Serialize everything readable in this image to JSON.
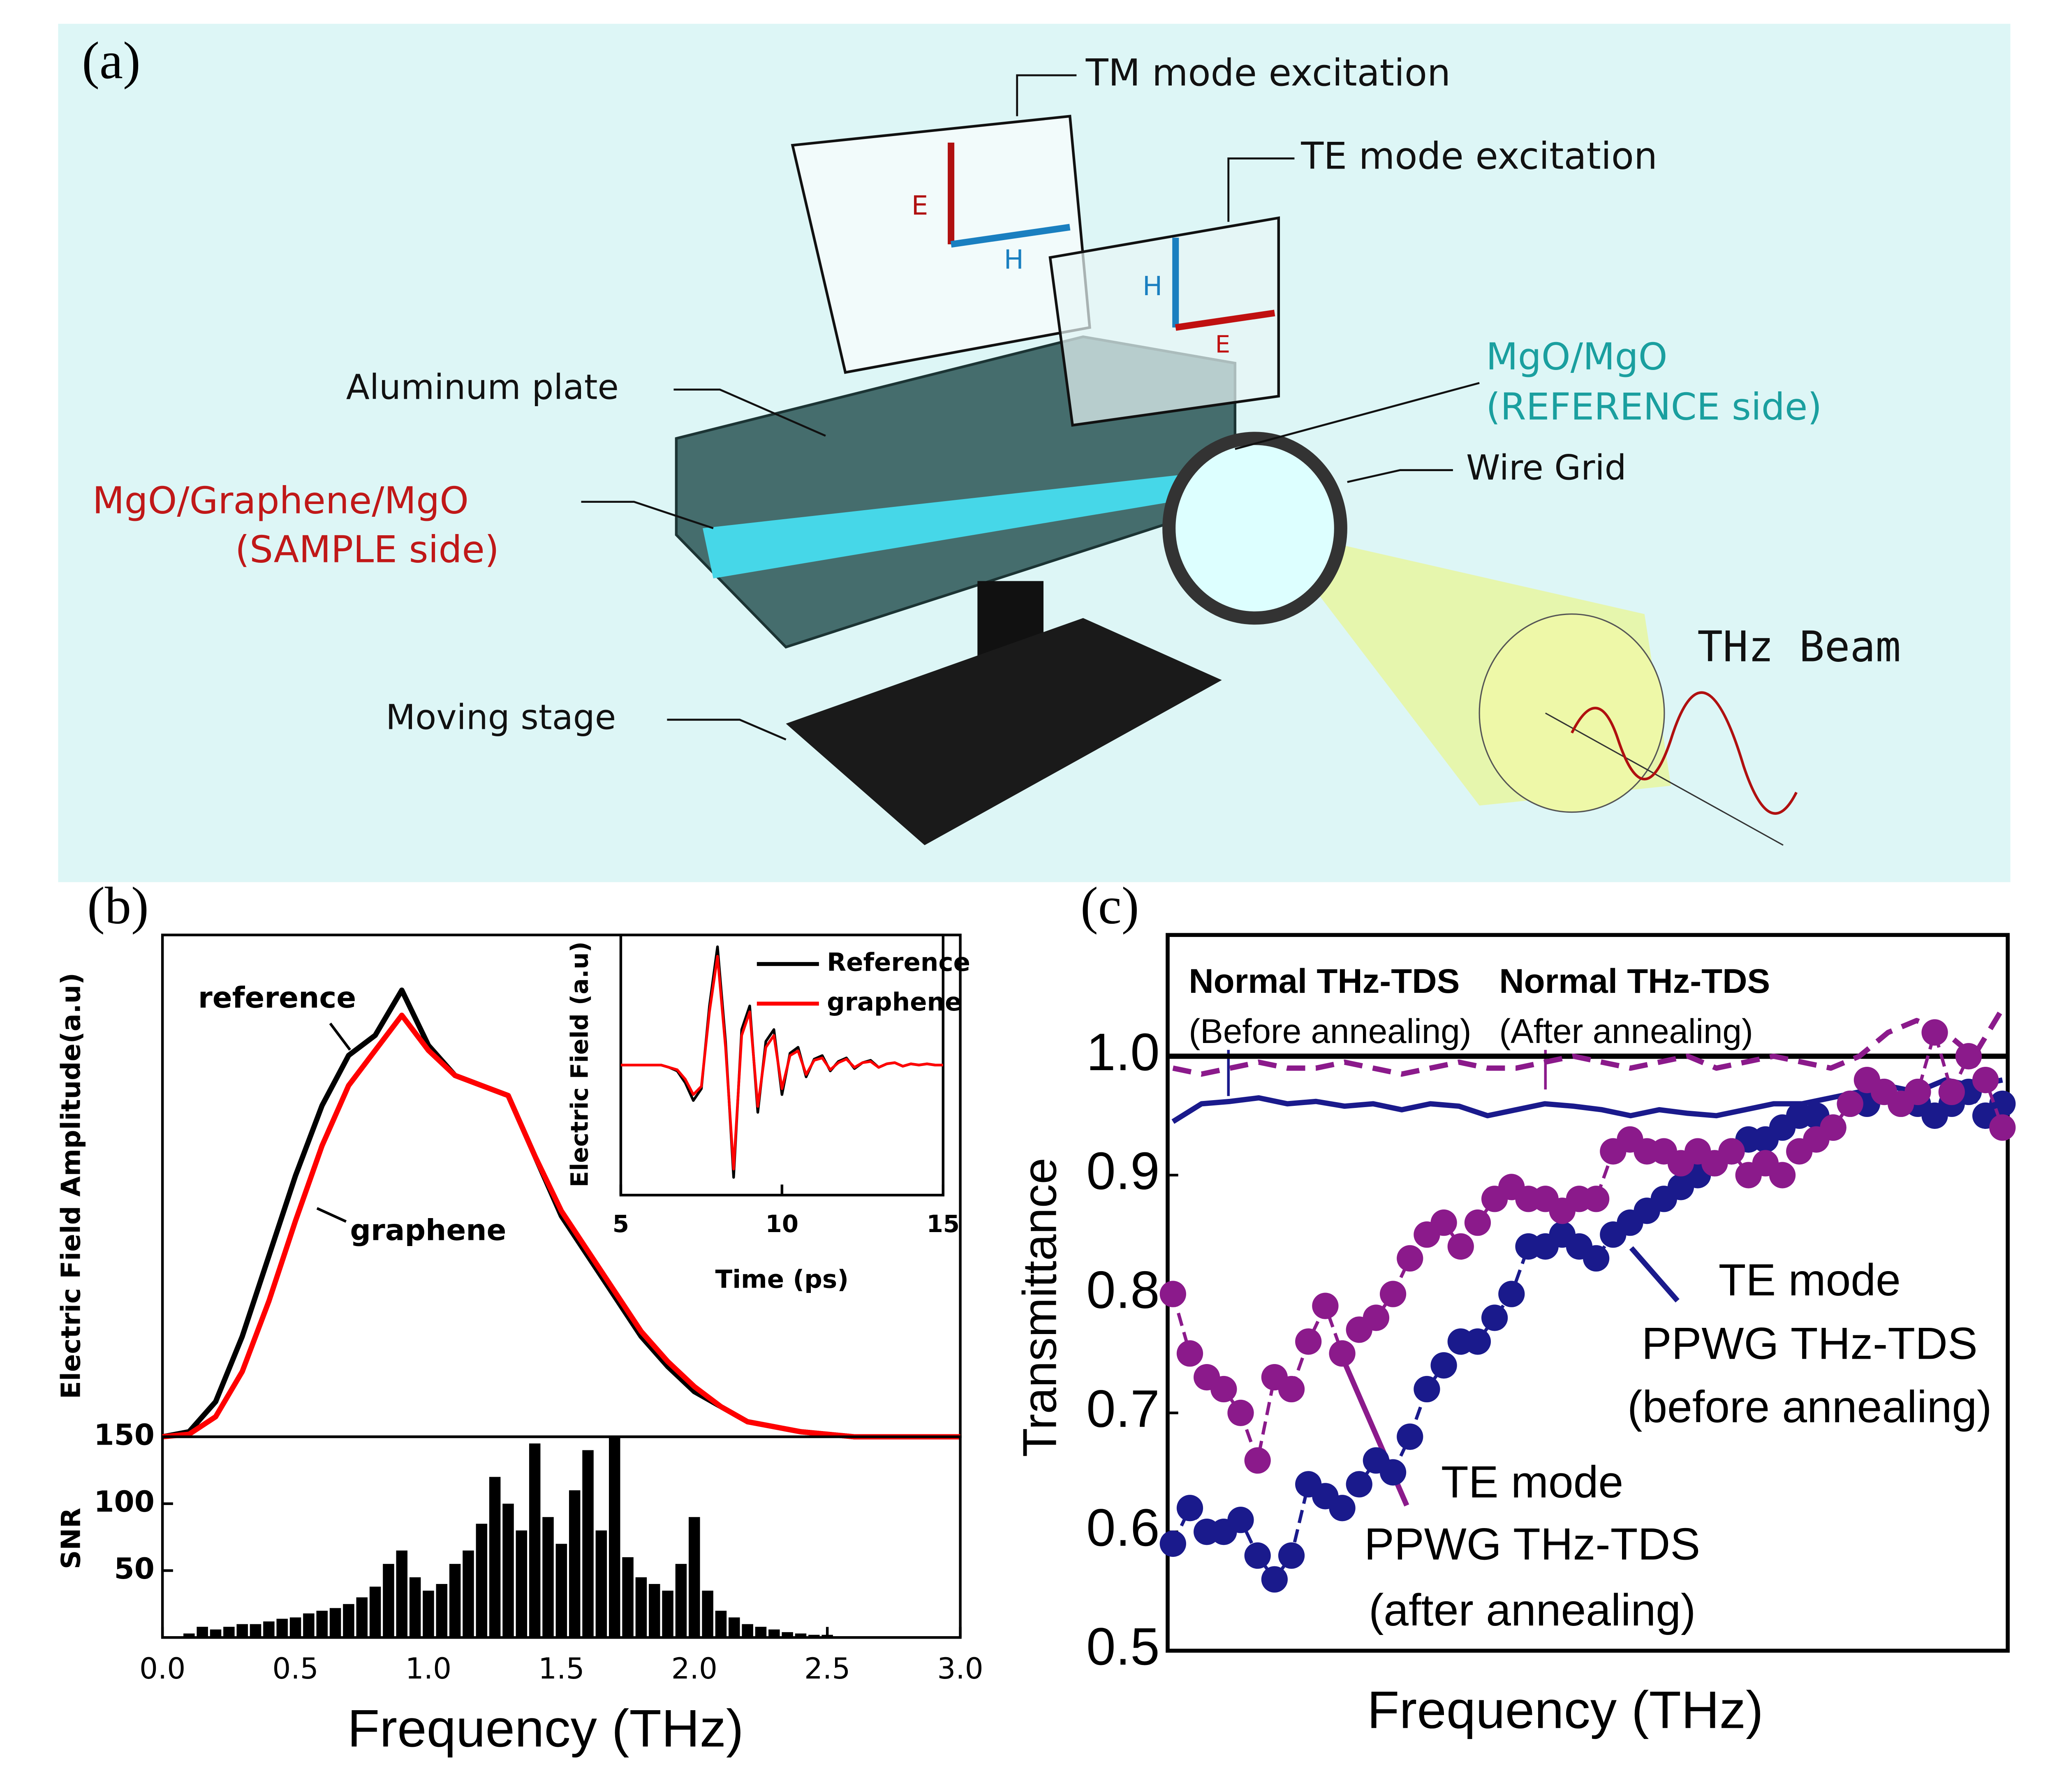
{
  "diagram": {
    "panel_label": "(a)",
    "labels": [
      "TM mode excitation",
      "TE mode excitation",
      "MgO/MgO",
      "(REFERENCE side)",
      "Aluminum plate",
      "Wire Grid",
      "MgO/Graphene/MgO",
      "(SAMPLE side)",
      "Moving stage",
      "THz Beam",
      "E",
      "H",
      "H",
      "E"
    ]
  },
  "chart_data": [
    {
      "type": "line",
      "panel_label": "(b)",
      "ylabel": "Electric Field Amplitude(a.u)",
      "xlim": [
        0,
        3
      ],
      "ylim": [
        0,
        1
      ],
      "x": [
        0,
        0.1,
        0.2,
        0.3,
        0.4,
        0.5,
        0.6,
        0.7,
        0.8,
        0.9,
        1.0,
        1.1,
        1.2,
        1.3,
        1.4,
        1.5,
        1.6,
        1.7,
        1.8,
        1.9,
        2.0,
        2.1,
        2.2,
        2.3,
        2.4,
        2.5,
        2.6,
        2.7,
        2.8,
        2.9,
        3.0
      ],
      "series": [
        {
          "name": "reference",
          "color": "#000000",
          "style": "solid",
          "values": [
            0,
            0.01,
            0.07,
            0.2,
            0.36,
            0.52,
            0.66,
            0.76,
            0.8,
            0.89,
            0.78,
            0.72,
            0.7,
            0.68,
            0.56,
            0.44,
            0.36,
            0.28,
            0.2,
            0.14,
            0.09,
            0.06,
            0.03,
            0.02,
            0.01,
            0.005,
            0,
            0,
            0,
            0,
            0
          ]
        },
        {
          "name": "graphene",
          "color": "#ff0000",
          "style": "solid",
          "values": [
            0,
            0.005,
            0.04,
            0.13,
            0.27,
            0.43,
            0.58,
            0.7,
            0.77,
            0.84,
            0.77,
            0.72,
            0.7,
            0.68,
            0.56,
            0.45,
            0.37,
            0.29,
            0.21,
            0.15,
            0.1,
            0.06,
            0.03,
            0.02,
            0.01,
            0.005,
            0,
            0,
            0,
            0,
            0
          ]
        }
      ]
    },
    {
      "type": "bar",
      "ylabel": "SNR",
      "xlabel": "Frequency (THz)",
      "xlim": [
        0,
        3
      ],
      "ylim": [
        0,
        150
      ],
      "yticks": [
        50,
        100,
        150
      ],
      "xticks": [
        {
          "value": 0,
          "label": "0.0"
        },
        0.5,
        {
          "value": 1,
          "label": "1.0"
        },
        1.5,
        {
          "value": 2,
          "label": "2.0"
        },
        2.5,
        {
          "value": 3,
          "label": "3.0"
        }
      ],
      "color": "#000000",
      "x": [
        0,
        0.05,
        0.1,
        0.15,
        0.2,
        0.25,
        0.3,
        0.35,
        0.4,
        0.45,
        0.5,
        0.55,
        0.6,
        0.65,
        0.7,
        0.75,
        0.8,
        0.85,
        0.9,
        0.95,
        1.0,
        1.05,
        1.1,
        1.15,
        1.2,
        1.25,
        1.3,
        1.35,
        1.4,
        1.45,
        1.5,
        1.55,
        1.6,
        1.65,
        1.7,
        1.75,
        1.8,
        1.85,
        1.9,
        1.95,
        2.0,
        2.05,
        2.1,
        2.15,
        2.2,
        2.25,
        2.3,
        2.35,
        2.4,
        2.45,
        2.5,
        2.55,
        2.6,
        2.65,
        2.7,
        2.75,
        2.8,
        2.85,
        2.9,
        2.95
      ],
      "values": [
        0,
        0,
        3,
        8,
        6,
        8,
        10,
        10,
        12,
        14,
        15,
        18,
        20,
        22,
        25,
        30,
        38,
        55,
        65,
        45,
        35,
        40,
        55,
        65,
        85,
        120,
        100,
        80,
        145,
        90,
        70,
        110,
        140,
        80,
        150,
        60,
        45,
        40,
        35,
        55,
        90,
        35,
        20,
        15,
        10,
        8,
        6,
        4,
        3,
        2,
        2,
        0,
        0,
        0,
        0,
        0,
        0,
        0,
        0,
        0
      ]
    },
    {
      "type": "line",
      "xlabel": "Time (ps)",
      "ylabel": "Electric Field (a.u)",
      "xlim": [
        5,
        15
      ],
      "xticks": [
        5,
        10,
        15
      ],
      "ylim": [
        -1.1,
        1.1
      ],
      "x": [
        5,
        5.25,
        5.5,
        5.75,
        6,
        6.25,
        6.5,
        6.75,
        7,
        7.25,
        7.5,
        7.75,
        8,
        8.25,
        8.5,
        8.75,
        9,
        9.25,
        9.5,
        9.75,
        10,
        10.25,
        10.5,
        10.75,
        11,
        11.25,
        11.5,
        11.75,
        12,
        12.25,
        12.5,
        12.75,
        13,
        13.25,
        13.5,
        13.75,
        14,
        14.25,
        14.5,
        14.75,
        15
      ],
      "series": [
        {
          "name": "Reference",
          "color": "#000000",
          "style": "solid",
          "values": [
            0,
            0,
            0,
            0,
            0,
            0,
            -0.02,
            -0.05,
            -0.15,
            -0.3,
            -0.2,
            0.5,
            1.0,
            0.2,
            -0.95,
            0.3,
            0.5,
            -0.4,
            0.2,
            0.3,
            -0.25,
            0.1,
            0.15,
            -0.1,
            0.05,
            0.08,
            -0.05,
            0.03,
            0.06,
            -0.03,
            0.02,
            0.04,
            -0.02,
            0.01,
            0.02,
            -0.01,
            0.01,
            0,
            0.01,
            0,
            0
          ]
        },
        {
          "name": "graphene",
          "color": "#ff0000",
          "style": "solid",
          "values": [
            0,
            0,
            0,
            0,
            0,
            0,
            -0.02,
            -0.04,
            -0.12,
            -0.25,
            -0.18,
            0.45,
            0.92,
            0.15,
            -0.88,
            0.25,
            0.45,
            -0.35,
            0.15,
            0.25,
            -0.2,
            0.08,
            0.12,
            -0.08,
            0.04,
            0.06,
            -0.04,
            0.02,
            0.05,
            -0.02,
            0.02,
            0.03,
            -0.02,
            0.01,
            0.02,
            -0.01,
            0.01,
            0,
            0.01,
            0,
            0
          ]
        }
      ]
    },
    {
      "type": "line",
      "panel_label": "(c)",
      "ylabel": "Transmittance",
      "xlabel": "Frequency (THz)",
      "ylim": [
        0.5,
        1.102
      ],
      "yticks": [
        0.5,
        0.6,
        0.7,
        0.8,
        0.9,
        {
          "value": 1,
          "label": "1.0"
        }
      ],
      "reference_line": 1,
      "annotations": [
        "Normal THz-TDS",
        "(Before annealing)",
        "Normal THz-TDS",
        "(After annealing)",
        "TE mode",
        "PPWG THz-TDS",
        "(before annealing)",
        "TE mode",
        "PPWG THz-TDS",
        "(after annealing)"
      ],
      "series": [
        {
          "color": "#1a1a8c",
          "style": "solid",
          "values": [
            0.945,
            0.96,
            0.962,
            0.965,
            0.96,
            0.962,
            0.958,
            0.96,
            0.955,
            0.96,
            0.958,
            0.95,
            0.955,
            0.96,
            0.958,
            0.955,
            0.95,
            0.955,
            0.952,
            0.95,
            0.955,
            0.96,
            0.96,
            0.965,
            0.97,
            0.975,
            0.97,
            0.98,
            0.975,
            0.98
          ]
        },
        {
          "color": "#8b1a8b",
          "style": "dashed",
          "values": [
            0.99,
            0.985,
            0.99,
            0.995,
            0.99,
            0.99,
            0.995,
            0.99,
            0.985,
            0.99,
            0.995,
            0.99,
            0.99,
            0.995,
            1.0,
            0.995,
            0.99,
            0.995,
            1.0,
            0.99,
            0.995,
            1.0,
            0.995,
            0.99,
            1.0,
            1.02,
            1.03,
            1.02,
            1.0,
            1.04
          ]
        },
        {
          "color": "#1a1a8c",
          "style": "markers",
          "values": [
            0.59,
            0.62,
            0.6,
            0.6,
            0.61,
            0.58,
            0.56,
            0.58,
            0.64,
            0.63,
            0.62,
            0.64,
            0.66,
            0.65,
            0.68,
            0.72,
            0.74,
            0.76,
            0.76,
            0.78,
            0.8,
            0.84,
            0.84,
            0.85,
            0.84,
            0.83,
            0.85,
            0.86,
            0.87,
            0.88,
            0.89,
            0.9,
            0.91,
            0.92,
            0.93,
            0.93,
            0.94,
            0.95,
            0.95,
            0.94,
            0.96,
            0.96,
            0.97,
            0.96,
            0.96,
            0.95,
            0.96,
            0.97,
            0.95,
            0.96
          ]
        },
        {
          "color": "#8b1a8b",
          "style": "markers",
          "values": [
            0.8,
            0.75,
            0.73,
            0.72,
            0.7,
            0.66,
            0.73,
            0.72,
            0.76,
            0.79,
            0.75,
            0.77,
            0.78,
            0.8,
            0.83,
            0.85,
            0.86,
            0.84,
            0.86,
            0.88,
            0.89,
            0.88,
            0.88,
            0.87,
            0.88,
            0.88,
            0.92,
            0.93,
            0.92,
            0.92,
            0.91,
            0.92,
            0.91,
            0.92,
            0.9,
            0.91,
            0.9,
            0.92,
            0.93,
            0.94,
            0.96,
            0.98,
            0.97,
            0.96,
            0.97,
            1.02,
            0.97,
            1.0,
            0.98,
            0.94
          ]
        }
      ]
    }
  ]
}
